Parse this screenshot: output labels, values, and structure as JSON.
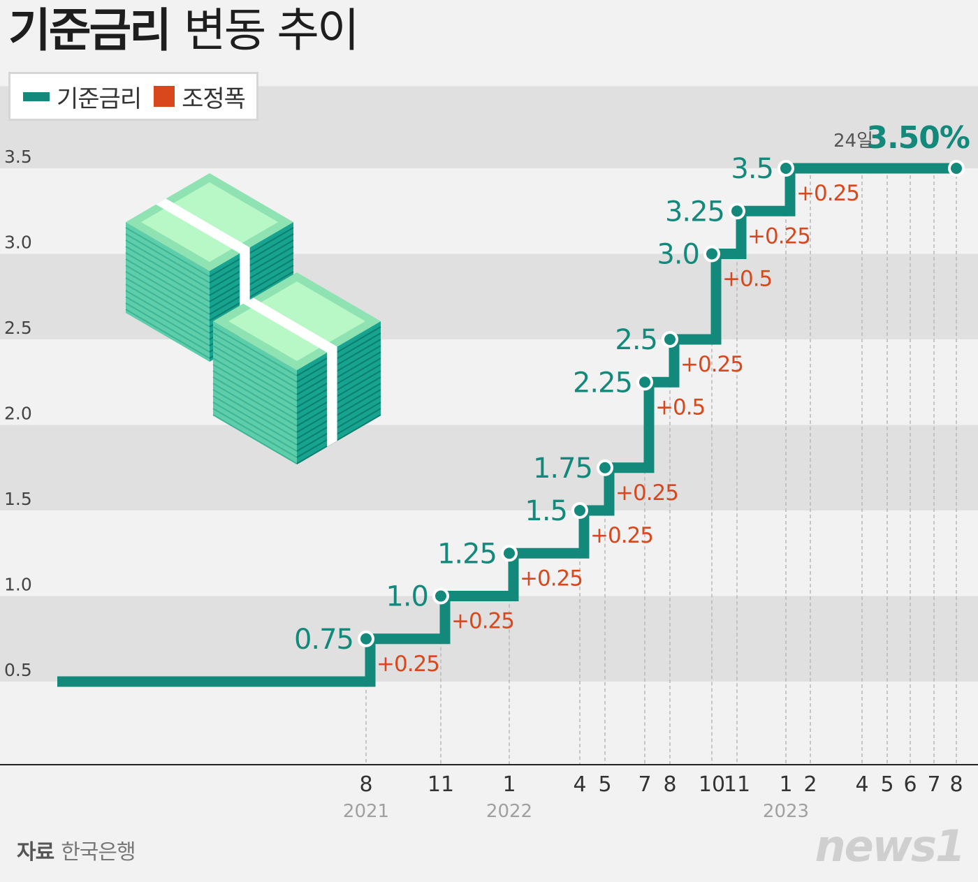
{
  "title": {
    "bold": "기준금리",
    "light": "변동 추이"
  },
  "legend": {
    "rate_label": "기준금리",
    "change_label": "조정폭"
  },
  "colors": {
    "rate": "#12897a",
    "change": "#d9481c",
    "band": "#e0e0e0",
    "bg": "#f2f2f2",
    "text": "#333333",
    "year": "#a0a0a0"
  },
  "source": {
    "label": "자료",
    "name": "한국은행"
  },
  "logo": "news1",
  "chart_data": {
    "type": "line",
    "step": true,
    "yticks": [
      "0.5",
      "1.0",
      "1.5",
      "2.0",
      "2.5",
      "3.0",
      "3.5"
    ],
    "ylim": [
      0.5,
      3.5
    ],
    "x_months": [
      "8",
      "11",
      "1",
      "4",
      "5",
      "7",
      "8",
      "10",
      "11",
      "1",
      "2",
      "4",
      "5",
      "6",
      "7",
      "8"
    ],
    "years": [
      {
        "label": "2021",
        "at_month_index": 0
      },
      {
        "label": "2022",
        "at_month_index": 2
      },
      {
        "label": "2023",
        "at_month_index": 9
      }
    ],
    "start_value": 0.5,
    "hikes": [
      {
        "month_index": 0,
        "value": 0.75,
        "label": "0.75",
        "change": "+0.25"
      },
      {
        "month_index": 1,
        "value": 1.0,
        "label": "1.0",
        "change": "+0.25"
      },
      {
        "month_index": 2,
        "value": 1.25,
        "label": "1.25",
        "change": "+0.25"
      },
      {
        "month_index": 3,
        "value": 1.5,
        "label": "1.5",
        "change": "+0.25"
      },
      {
        "month_index": 4,
        "value": 1.75,
        "label": "1.75",
        "change": "+0.25"
      },
      {
        "month_index": 5,
        "value": 2.25,
        "label": "2.25",
        "change": "+0.5"
      },
      {
        "month_index": 6,
        "value": 2.5,
        "label": "2.5",
        "change": "+0.25"
      },
      {
        "month_index": 7,
        "value": 3.0,
        "label": "3.0",
        "change": "+0.5"
      },
      {
        "month_index": 8,
        "value": 3.25,
        "label": "3.25",
        "change": "+0.25"
      },
      {
        "month_index": 9,
        "value": 3.5,
        "label": "3.5",
        "change": "+0.25"
      }
    ],
    "end": {
      "month_index": 15,
      "value": 3.5,
      "day_label": "24일",
      "label": "3.50%"
    }
  }
}
